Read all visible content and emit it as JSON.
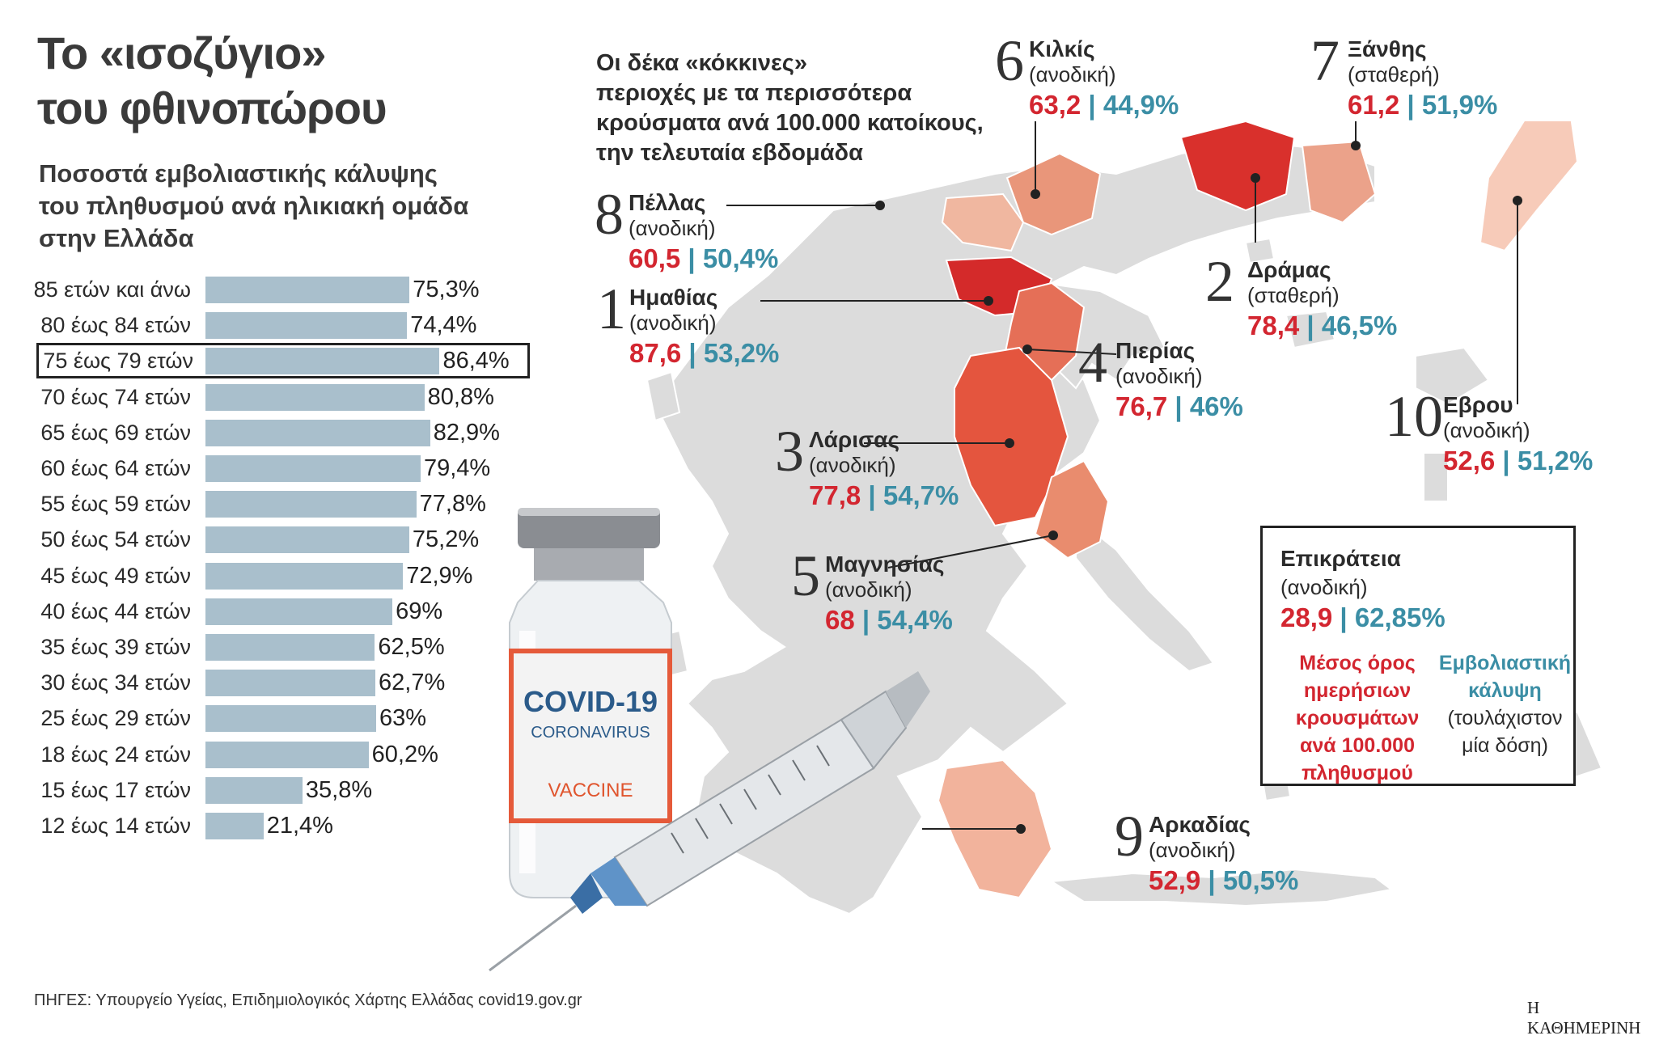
{
  "title_line1": "Το «ισοζύγιο»",
  "title_line2": "του φθινοπώρου",
  "subtitle_line1": "Ποσοστά εμβολιαστικής κάλυψης",
  "subtitle_line2": "του πληθυσμού ανά ηλικιακή ομάδα",
  "subtitle_line3": "στην Ελλάδα",
  "map_heading": {
    "line1": "Οι δέκα «κόκκινες»",
    "line2": "περιοχές με τα περισσότερα",
    "line3": "κρούσματα ανά 100.000 κατοίκους,",
    "line4": "την τελευταία εβδομάδα"
  },
  "chart_data": {
    "type": "bar",
    "orientation": "horizontal",
    "categories": [
      "85 ετών και άνω",
      "80 έως 84 ετών",
      "75 έως 79 ετών",
      "70 έως 74 ετών",
      "65 έως 69 ετών",
      "60 έως 64 ετών",
      "55 έως 59 ετών",
      "50 έως 54 ετών",
      "45 έως 49 ετών",
      "40 έως 44 ετών",
      "35 έως 39 ετών",
      "30 έως 34 ετών",
      "25 έως 29 ετών",
      "18 έως 24 ετών",
      "15 έως 17 ετών",
      "12 έως 14 ετών"
    ],
    "values": [
      75.3,
      74.4,
      86.4,
      80.8,
      82.9,
      79.4,
      77.8,
      75.2,
      72.9,
      69,
      62.5,
      62.7,
      63,
      60.2,
      35.8,
      21.4
    ],
    "value_labels": [
      "75,3%",
      "74,4%",
      "86,4%",
      "80,8%",
      "82,9%",
      "79,4%",
      "77,8%",
      "75,2%",
      "72,9%",
      "69%",
      "62,5%",
      "62,7%",
      "63%",
      "60,2%",
      "35,8%",
      "21,4%"
    ],
    "highlighted": "75 έως 79 ετών",
    "grid": false,
    "bar_color": "#a9bfcc"
  },
  "regions": [
    {
      "rank": "1",
      "name": "Ημαθίας",
      "trend": "(ανοδική)",
      "cases": "87,6",
      "coverage": "53,2%"
    },
    {
      "rank": "2",
      "name": "Δράμας",
      "trend": "(σταθερή)",
      "cases": "78,4",
      "coverage": "46,5%"
    },
    {
      "rank": "3",
      "name": "Λάρισας",
      "trend": "(ανοδική)",
      "cases": "77,8",
      "coverage": "54,7%"
    },
    {
      "rank": "4",
      "name": "Πιερίας",
      "trend": "(ανοδική)",
      "cases": "76,7",
      "coverage": "46%"
    },
    {
      "rank": "5",
      "name": "Μαγνησίας",
      "trend": "(ανοδική)",
      "cases": "68",
      "coverage": "54,4%"
    },
    {
      "rank": "6",
      "name": "Κιλκίς",
      "trend": "(ανοδική)",
      "cases": "63,2",
      "coverage": "44,9%"
    },
    {
      "rank": "7",
      "name": "Ξάνθης",
      "trend": "(σταθερή)",
      "cases": "61,2",
      "coverage": "51,9%"
    },
    {
      "rank": "8",
      "name": "Πέλλας",
      "trend": "(ανοδική)",
      "cases": "60,5",
      "coverage": "50,4%"
    },
    {
      "rank": "9",
      "name": "Αρκαδίας",
      "trend": "(ανοδική)",
      "cases": "52,9",
      "coverage": "50,5%"
    },
    {
      "rank": "10",
      "name": "Εβρου",
      "trend": "(ανοδική)",
      "cases": "52,6",
      "coverage": "51,2%"
    }
  ],
  "separator": "|",
  "legend_box": {
    "name": "Επικράτεια",
    "trend": "(ανοδική)",
    "cases": "28,9",
    "coverage": "62,85%",
    "left_label": "Μέσος όρος ημερήσιων κρουσμάτων ανά 100.000 πληθυσμού",
    "right_label_bold": "Εμβολιαστική κάλυψη",
    "right_label_note": "(τουλάχιστον μία δόση)"
  },
  "vaccine_vial": {
    "line1": "COVID-19",
    "line2": "CORONAVIRUS",
    "line3": "VACCINE"
  },
  "source": "ΠΗΓΕΣ: Υπουργείο Υγείας, Επιδημιολογικός Χάρτης Ελλάδας covid19.gov.gr",
  "publisher": "Η ΚΑΘΗΜΕΡΙΝΗ",
  "colors": {
    "red": "#d32630",
    "teal": "#3b8ea5",
    "bar": "#a9bfcc",
    "map_gray": "#dcdcdc"
  }
}
